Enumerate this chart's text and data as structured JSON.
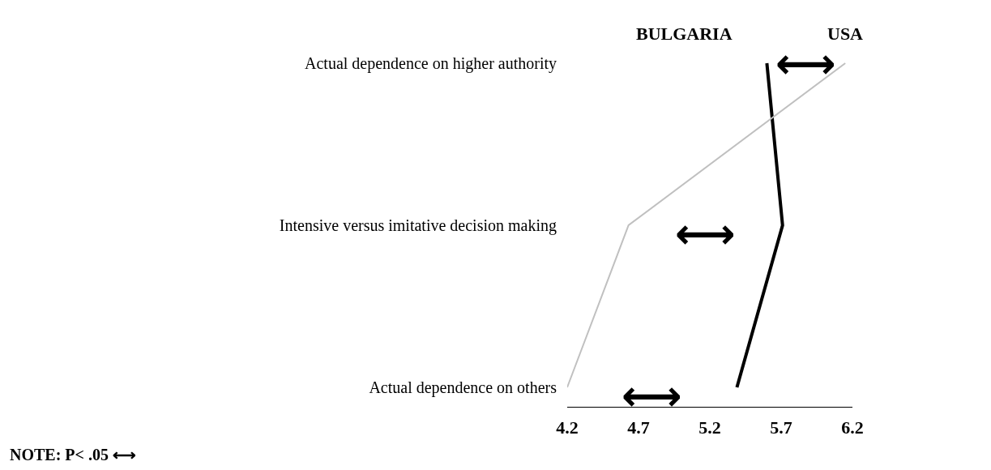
{
  "chart_data": {
    "type": "line",
    "orientation": "horizontal",
    "categories": [
      "Actual dependence on higher authority",
      "Intensive versus imitative decision making",
      "Actual dependence on others"
    ],
    "series": [
      {
        "name": "BULGARIA",
        "color": "#000000",
        "values": [
          5.6,
          5.71,
          5.39
        ]
      },
      {
        "name": "USA",
        "color": "#c0c0c0",
        "values": [
          6.15,
          4.63,
          4.2
        ]
      }
    ],
    "xlim": [
      4.2,
      6.2
    ],
    "xticks": [
      4.2,
      4.7,
      5.2,
      5.7,
      6.2
    ],
    "legend": false,
    "marker": "none",
    "line_style": "solid",
    "annotations": [
      "⟷",
      "⟷",
      "⟷",
      "NOTE: P< .05 ⟷"
    ]
  }
}
